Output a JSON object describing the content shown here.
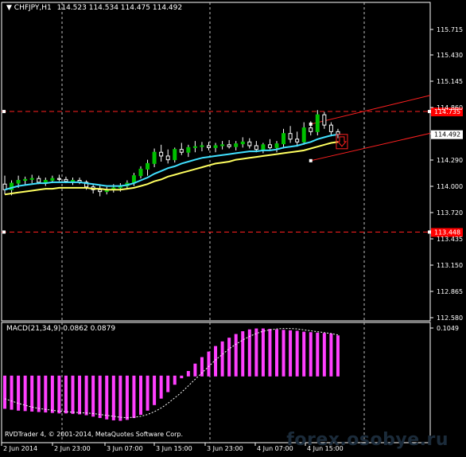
{
  "header": {
    "symbol": "CHFJPY,H1",
    "ohlc": "114.523 114.534 114.475 114.492"
  },
  "colors": {
    "background": "#000000",
    "frame": "#ffffff",
    "bull_candle": "#00c000",
    "bear_candle": "#ffffff",
    "ma_fast": "#40e0ff",
    "ma_slow": "#ffff60",
    "level_line": "#ff2020",
    "trendline": "#ff2020",
    "macd_hist": "#ff40ff",
    "signal_line": "#ffffff",
    "price_tag": "#ffffff",
    "level_tag": "#ff0000",
    "watermark": "#1b2b3a"
  },
  "chart_data": {
    "type": "candlestick",
    "symbol": "CHFJPY",
    "timeframe": "H1",
    "ylim": [
      112.5,
      115.9
    ],
    "y_ticks": [
      "115.715",
      "115.430",
      "115.145",
      "114.860",
      "114.575",
      "114.290",
      "114.000",
      "113.720",
      "113.435",
      "113.150",
      "112.865",
      "112.580"
    ],
    "x_ticks": [
      "2 Jun 2014",
      "2 Jun 23:00",
      "3 Jun 07:00",
      "3 Jun 15:00",
      "3 Jun 23:00",
      "4 Jun 07:00",
      "4 Jun 15:00"
    ],
    "last_price": "114.492",
    "levels": [
      {
        "label": "114.735",
        "value": 114.735
      },
      {
        "label": "113.448",
        "value": 113.448
      }
    ],
    "candles": [
      {
        "o": 113.96,
        "h": 114.05,
        "l": 113.85,
        "c": 113.9
      },
      {
        "o": 113.9,
        "h": 114.0,
        "l": 113.84,
        "c": 113.97
      },
      {
        "o": 113.97,
        "h": 114.05,
        "l": 113.92,
        "c": 114.0
      },
      {
        "o": 114.0,
        "h": 114.04,
        "l": 113.95,
        "c": 114.01
      },
      {
        "o": 114.01,
        "h": 114.06,
        "l": 113.97,
        "c": 114.02
      },
      {
        "o": 114.02,
        "h": 114.05,
        "l": 113.96,
        "c": 113.98
      },
      {
        "o": 113.98,
        "h": 114.03,
        "l": 113.94,
        "c": 114.0
      },
      {
        "o": 114.0,
        "h": 114.05,
        "l": 113.97,
        "c": 114.02
      },
      {
        "o": 114.02,
        "h": 114.06,
        "l": 113.99,
        "c": 114.01
      },
      {
        "o": 114.01,
        "h": 114.04,
        "l": 113.97,
        "c": 113.99
      },
      {
        "o": 113.99,
        "h": 114.03,
        "l": 113.95,
        "c": 114.0
      },
      {
        "o": 114.0,
        "h": 114.03,
        "l": 113.96,
        "c": 113.98
      },
      {
        "o": 113.98,
        "h": 114.0,
        "l": 113.9,
        "c": 113.93
      },
      {
        "o": 113.93,
        "h": 113.96,
        "l": 113.86,
        "c": 113.9
      },
      {
        "o": 113.9,
        "h": 113.95,
        "l": 113.83,
        "c": 113.88
      },
      {
        "o": 113.88,
        "h": 113.93,
        "l": 113.85,
        "c": 113.9
      },
      {
        "o": 113.9,
        "h": 113.96,
        "l": 113.87,
        "c": 113.92
      },
      {
        "o": 113.92,
        "h": 113.97,
        "l": 113.88,
        "c": 113.94
      },
      {
        "o": 113.94,
        "h": 114.0,
        "l": 113.91,
        "c": 113.97
      },
      {
        "o": 113.97,
        "h": 114.08,
        "l": 113.94,
        "c": 114.05
      },
      {
        "o": 114.05,
        "h": 114.15,
        "l": 114.02,
        "c": 114.12
      },
      {
        "o": 114.12,
        "h": 114.22,
        "l": 114.05,
        "c": 114.18
      },
      {
        "o": 114.18,
        "h": 114.34,
        "l": 114.14,
        "c": 114.3
      },
      {
        "o": 114.3,
        "h": 114.38,
        "l": 114.2,
        "c": 114.26
      },
      {
        "o": 114.26,
        "h": 114.33,
        "l": 114.18,
        "c": 114.22
      },
      {
        "o": 114.22,
        "h": 114.35,
        "l": 114.19,
        "c": 114.33
      },
      {
        "o": 114.33,
        "h": 114.4,
        "l": 114.27,
        "c": 114.3
      },
      {
        "o": 114.3,
        "h": 114.38,
        "l": 114.25,
        "c": 114.35
      },
      {
        "o": 114.35,
        "h": 114.42,
        "l": 114.3,
        "c": 114.36
      },
      {
        "o": 114.36,
        "h": 114.41,
        "l": 114.31,
        "c": 114.37
      },
      {
        "o": 114.37,
        "h": 114.41,
        "l": 114.32,
        "c": 114.35
      },
      {
        "o": 114.35,
        "h": 114.4,
        "l": 114.3,
        "c": 114.37
      },
      {
        "o": 114.37,
        "h": 114.42,
        "l": 114.33,
        "c": 114.38
      },
      {
        "o": 114.38,
        "h": 114.43,
        "l": 114.34,
        "c": 114.36
      },
      {
        "o": 114.36,
        "h": 114.42,
        "l": 114.32,
        "c": 114.39
      },
      {
        "o": 114.39,
        "h": 114.46,
        "l": 114.35,
        "c": 114.41
      },
      {
        "o": 114.41,
        "h": 114.45,
        "l": 114.34,
        "c": 114.37
      },
      {
        "o": 114.37,
        "h": 114.42,
        "l": 114.3,
        "c": 114.33
      },
      {
        "o": 114.33,
        "h": 114.4,
        "l": 114.29,
        "c": 114.38
      },
      {
        "o": 114.38,
        "h": 114.44,
        "l": 114.33,
        "c": 114.35
      },
      {
        "o": 114.35,
        "h": 114.42,
        "l": 114.3,
        "c": 114.39
      },
      {
        "o": 114.39,
        "h": 114.55,
        "l": 114.34,
        "c": 114.5
      },
      {
        "o": 114.5,
        "h": 114.58,
        "l": 114.4,
        "c": 114.44
      },
      {
        "o": 114.44,
        "h": 114.52,
        "l": 114.36,
        "c": 114.41
      },
      {
        "o": 114.41,
        "h": 114.62,
        "l": 114.38,
        "c": 114.56
      },
      {
        "o": 114.56,
        "h": 114.63,
        "l": 114.48,
        "c": 114.52
      },
      {
        "o": 114.52,
        "h": 114.75,
        "l": 114.48,
        "c": 114.7
      },
      {
        "o": 114.7,
        "h": 114.73,
        "l": 114.55,
        "c": 114.59
      },
      {
        "o": 114.59,
        "h": 114.62,
        "l": 114.47,
        "c": 114.52
      },
      {
        "o": 114.52,
        "h": 114.55,
        "l": 114.45,
        "c": 114.49
      }
    ],
    "ma_fast_values": [
      113.9,
      113.92,
      113.94,
      113.95,
      113.96,
      113.97,
      113.97,
      113.98,
      113.98,
      113.98,
      113.98,
      113.98,
      113.97,
      113.96,
      113.95,
      113.94,
      113.94,
      113.94,
      113.95,
      113.97,
      114.0,
      114.03,
      114.07,
      114.1,
      114.13,
      114.15,
      114.18,
      114.2,
      114.22,
      114.24,
      114.25,
      114.26,
      114.27,
      114.28,
      114.29,
      114.3,
      114.31,
      114.31,
      114.32,
      114.32,
      114.33,
      114.35,
      114.36,
      114.37,
      114.39,
      114.41,
      114.44,
      114.46,
      114.48,
      114.49
    ],
    "ma_slow_values": [
      113.85,
      113.86,
      113.87,
      113.88,
      113.89,
      113.9,
      113.91,
      113.91,
      113.92,
      113.92,
      113.92,
      113.92,
      113.92,
      113.91,
      113.91,
      113.9,
      113.9,
      113.9,
      113.91,
      113.92,
      113.94,
      113.96,
      113.99,
      114.01,
      114.04,
      114.06,
      114.08,
      114.1,
      114.12,
      114.14,
      114.16,
      114.18,
      114.19,
      114.2,
      114.22,
      114.23,
      114.24,
      114.25,
      114.26,
      114.27,
      114.28,
      114.29,
      114.3,
      114.31,
      114.32,
      114.34,
      114.36,
      114.38,
      114.4,
      114.41
    ],
    "macd": {
      "label": "MACD(21,34,9) 0.0862 0.0879",
      "ylim": [
        -0.145,
        0.115
      ],
      "y_ticks": [
        "0.1049"
      ],
      "hist": [
        -0.07,
        -0.072,
        -0.074,
        -0.075,
        -0.076,
        -0.077,
        -0.078,
        -0.079,
        -0.08,
        -0.08,
        -0.081,
        -0.082,
        -0.084,
        -0.087,
        -0.09,
        -0.093,
        -0.095,
        -0.096,
        -0.094,
        -0.09,
        -0.083,
        -0.074,
        -0.062,
        -0.048,
        -0.034,
        -0.018,
        -0.004,
        0.01,
        0.026,
        0.04,
        0.052,
        0.064,
        0.074,
        0.082,
        0.09,
        0.096,
        0.1,
        0.102,
        0.102,
        0.101,
        0.1,
        0.099,
        0.098,
        0.097,
        0.095,
        0.094,
        0.093,
        0.092,
        0.091,
        0.087
      ],
      "signal": [
        -0.05,
        -0.055,
        -0.06,
        -0.064,
        -0.068,
        -0.071,
        -0.073,
        -0.075,
        -0.077,
        -0.078,
        -0.079,
        -0.08,
        -0.081,
        -0.082,
        -0.084,
        -0.086,
        -0.088,
        -0.09,
        -0.091,
        -0.09,
        -0.088,
        -0.084,
        -0.078,
        -0.07,
        -0.06,
        -0.048,
        -0.036,
        -0.022,
        -0.008,
        0.006,
        0.02,
        0.034,
        0.046,
        0.058,
        0.068,
        0.077,
        0.085,
        0.091,
        0.096,
        0.099,
        0.101,
        0.102,
        0.102,
        0.101,
        0.099,
        0.097,
        0.095,
        0.093,
        0.091,
        0.088
      ]
    },
    "trendlines": [
      {
        "x0": 45,
        "y0": 114.6,
        "x1": 69,
        "y1": 115.02
      },
      {
        "x0": 45,
        "y0": 114.21,
        "x1": 69,
        "y1": 114.61
      }
    ],
    "sell_arrow_index": 49
  },
  "footer": {
    "copyright": "RVDTrader 4, © 2001-2014, MetaQuotes Software Corp.",
    "watermark": "forex.osobye.ru"
  }
}
